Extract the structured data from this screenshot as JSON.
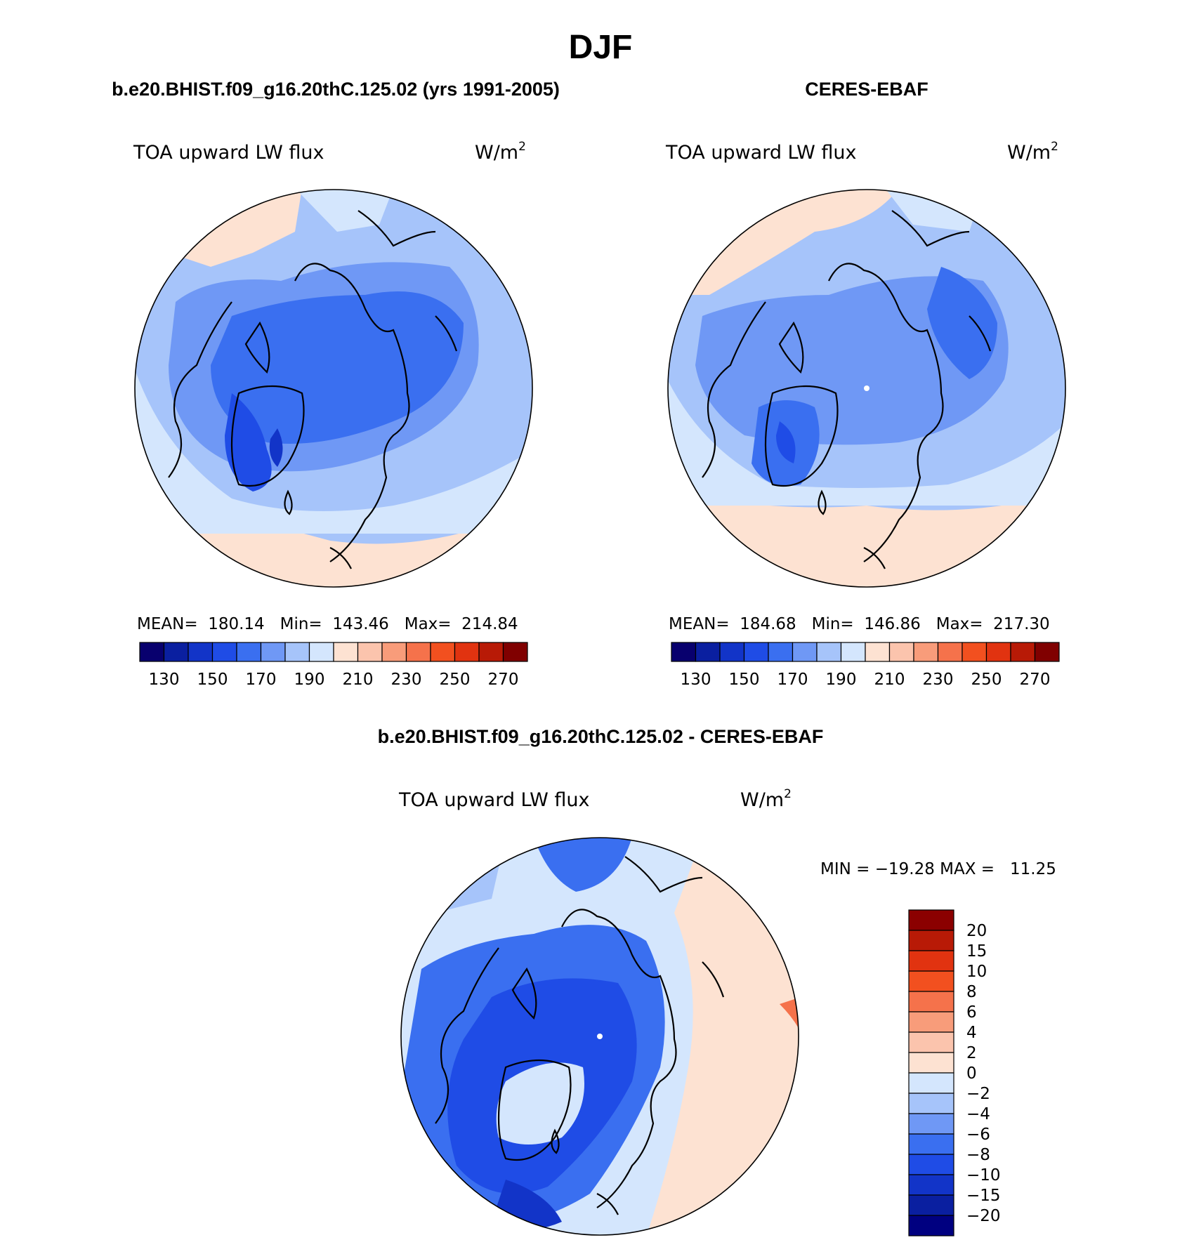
{
  "figure_title": "DJF",
  "colors": {
    "main_scale": [
      "#08006e",
      "#0a1fa0",
      "#1234c8",
      "#1f4ce6",
      "#3a6ff0",
      "#6f98f5",
      "#a6c4fa",
      "#d4e6fd",
      "#fde2d2",
      "#fbc4ad",
      "#f89c7a",
      "#f5724b",
      "#f2501f",
      "#e13310",
      "#b81a06",
      "#800000"
    ],
    "diff_scale": [
      "#000080",
      "#0a1fa0",
      "#1234c8",
      "#1f4ce6",
      "#3a6ff0",
      "#6f98f5",
      "#a6c4fa",
      "#d4e6fd",
      "#fde2d2",
      "#fbc4ad",
      "#f89c7a",
      "#f5724b",
      "#f2501f",
      "#e13310",
      "#b81a06",
      "#8b0000"
    ],
    "coast": "#000000"
  },
  "chart_data": [
    {
      "type": "heatmap",
      "projection": "north-polar-stereographic",
      "title": "b.e20.BHIST.f09_g16.20thC.125.02 (yrs 1991-2005)",
      "variable": "TOA upward LW flux",
      "units_base": "W/m",
      "units_exp": "2",
      "stats_text": "MEAN=  180.14   Min=  143.46   Max=  214.84",
      "stats": {
        "mean": 180.14,
        "min": 143.46,
        "max": 214.84
      },
      "colorbar": {
        "orientation": "horizontal",
        "levels": [
          130,
          140,
          150,
          160,
          170,
          180,
          190,
          200,
          210,
          220,
          230,
          240,
          250,
          260,
          270
        ],
        "tick_labels": [
          "130",
          "150",
          "170",
          "190",
          "210",
          "230",
          "250",
          "270"
        ]
      }
    },
    {
      "type": "heatmap",
      "projection": "north-polar-stereographic",
      "title": "CERES-EBAF",
      "variable": "TOA upward LW flux",
      "units_base": "W/m",
      "units_exp": "2",
      "stats_text": "MEAN=  184.68   Min=  146.86   Max=  217.30",
      "stats": {
        "mean": 184.68,
        "min": 146.86,
        "max": 217.3
      },
      "colorbar": {
        "orientation": "horizontal",
        "levels": [
          130,
          140,
          150,
          160,
          170,
          180,
          190,
          200,
          210,
          220,
          230,
          240,
          250,
          260,
          270
        ],
        "tick_labels": [
          "130",
          "150",
          "170",
          "190",
          "210",
          "230",
          "250",
          "270"
        ]
      }
    },
    {
      "type": "heatmap",
      "projection": "north-polar-stereographic",
      "title": "b.e20.BHIST.f09_g16.20thC.125.02 - CERES-EBAF",
      "variable": "TOA upward LW flux",
      "units_base": "W/m",
      "units_exp": "2",
      "stats_text": "MIN = −19.28 MAX =   11.25",
      "stats": {
        "min": -19.28,
        "max": 11.25
      },
      "colorbar": {
        "orientation": "vertical",
        "levels": [
          20,
          15,
          10,
          8,
          6,
          4,
          2,
          0,
          -2,
          -4,
          -6,
          -8,
          -10,
          -15,
          -20
        ],
        "tick_labels": [
          "20",
          "15",
          "10",
          "8",
          "6",
          "4",
          "2",
          "0",
          "−2",
          "−4",
          "−6",
          "−8",
          "−10",
          "−15",
          "−20"
        ]
      }
    }
  ]
}
